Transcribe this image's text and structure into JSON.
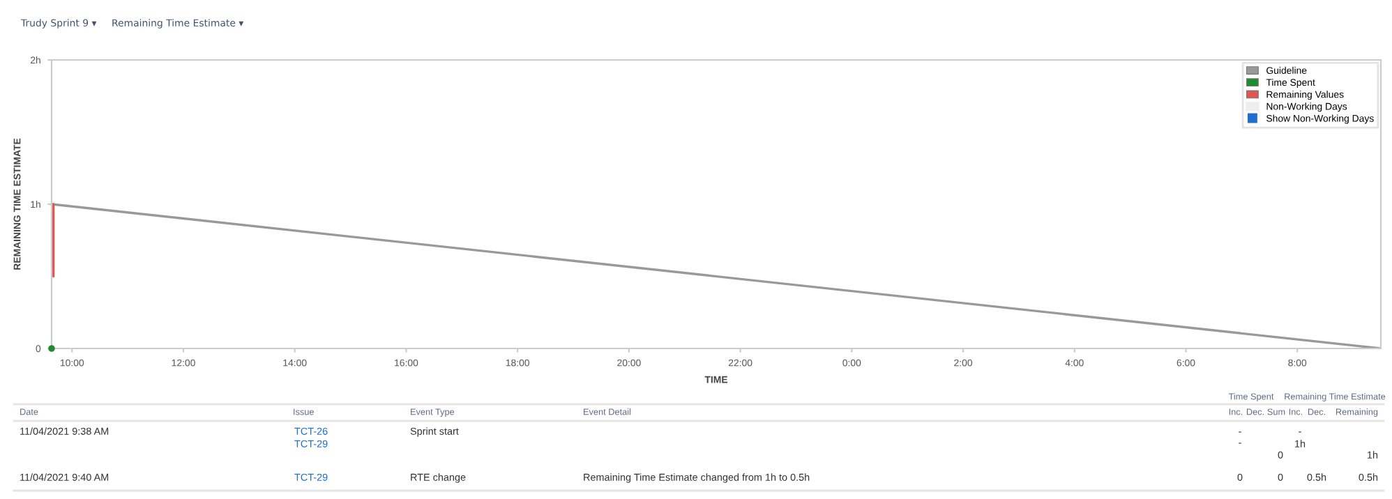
{
  "chart_data": {
    "type": "line",
    "title": "Trudy Sprint 9 ▾",
    "subtitle": "Remaining Time Estimate ▾",
    "xlabel": "TIME",
    "ylabel": "REMAINING TIME ESTIMATE",
    "series": [
      {
        "name": "Guideline",
        "color": "#999999",
        "x": [
          "2021-11-04T09:38",
          "2021-11-05T09:30"
        ],
        "values": [
          1,
          0
        ]
      },
      {
        "name": "Time Spent",
        "color": "#1e8c2e",
        "type": "scatter",
        "x": [
          "2021-11-04T09:38"
        ],
        "values": [
          0
        ]
      },
      {
        "name": "Remaining Values",
        "color": "#e0574f",
        "x": [
          "2021-11-04T09:40",
          "2021-11-04T09:40"
        ],
        "values": [
          1,
          0.5
        ]
      }
    ],
    "xlim": [
      "2021-11-04T09:38",
      "2021-11-05T09:30"
    ],
    "ylim": [
      0,
      2
    ],
    "xticks": [
      {
        "value": "2021-11-04T10:00",
        "label": "10:00"
      },
      {
        "value": "2021-11-04T12:00",
        "label": "12:00"
      },
      {
        "value": "2021-11-04T14:00",
        "label": "14:00"
      },
      {
        "value": "2021-11-04T16:00",
        "label": "16:00"
      },
      {
        "value": "2021-11-04T18:00",
        "label": "18:00"
      },
      {
        "value": "2021-11-04T20:00",
        "label": "20:00"
      },
      {
        "value": "2021-11-04T22:00",
        "label": "22:00"
      },
      {
        "value": "2021-11-05T00:00",
        "label": "0:00"
      },
      {
        "value": "2021-11-05T02:00",
        "label": "2:00"
      },
      {
        "value": "2021-11-05T04:00",
        "label": "4:00"
      },
      {
        "value": "2021-11-05T06:00",
        "label": "6:00"
      },
      {
        "value": "2021-11-05T08:00",
        "label": "8:00"
      }
    ],
    "yticks": [
      0,
      {
        "value": 1,
        "label": "1h"
      },
      {
        "value": 2,
        "label": "2h"
      }
    ],
    "grid": false,
    "legend": "top right",
    "line_style": "solid",
    "annotations": [
      "Time Spent",
      "Remaining Time Estimate",
      "Date",
      "Issue",
      "Event Type",
      "Event Detail",
      "Inc.",
      "Dec.",
      "Sum",
      "Inc.",
      "Dec.",
      "Remaining",
      "11/04/2021 9:38 AM",
      "TCT-26",
      "TCT-29",
      "Sprint start",
      "-",
      "-",
      "0",
      "-",
      "1h",
      "1h",
      "11/04/2021 9:40 AM",
      "TCT-29",
      "RTE change",
      "Remaining Time Estimate changed from 1h to 0.5h",
      "0",
      "0",
      "0.5h",
      "0.5h",
      "Non-Working Days",
      "Show Non-Working Days"
    ]
  }
}
